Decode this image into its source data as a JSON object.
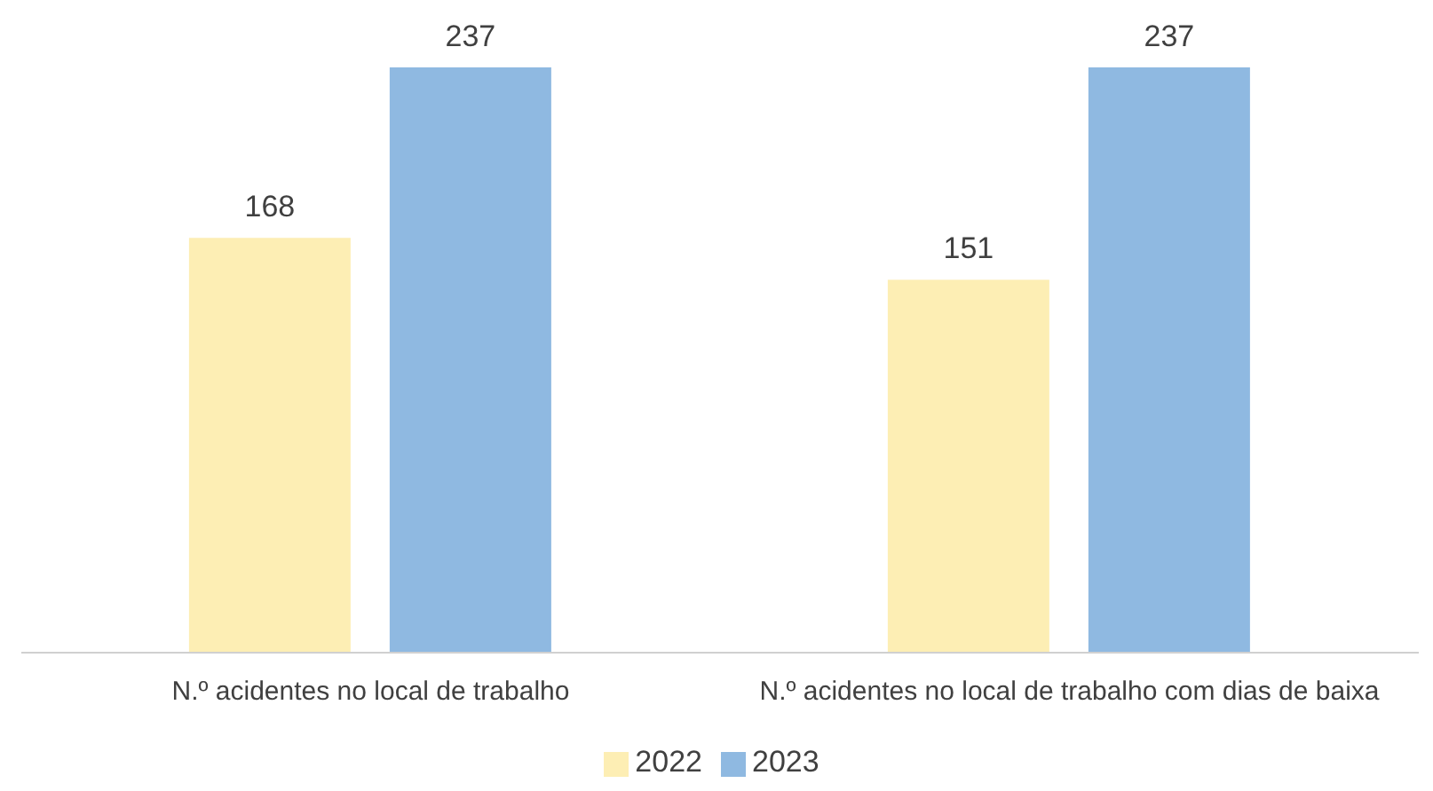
{
  "chart_data": {
    "type": "bar",
    "categories": [
      "N.º acidentes no local de trabalho",
      "N.º acidentes no local de trabalho com dias de baixa"
    ],
    "series": [
      {
        "name": "2022",
        "color": "#fdeeb4",
        "values": [
          168,
          151
        ]
      },
      {
        "name": "2023",
        "color": "#8fb9e1",
        "values": [
          237,
          237
        ]
      }
    ],
    "data_labels": true,
    "legend": "bottom",
    "grid": false
  }
}
